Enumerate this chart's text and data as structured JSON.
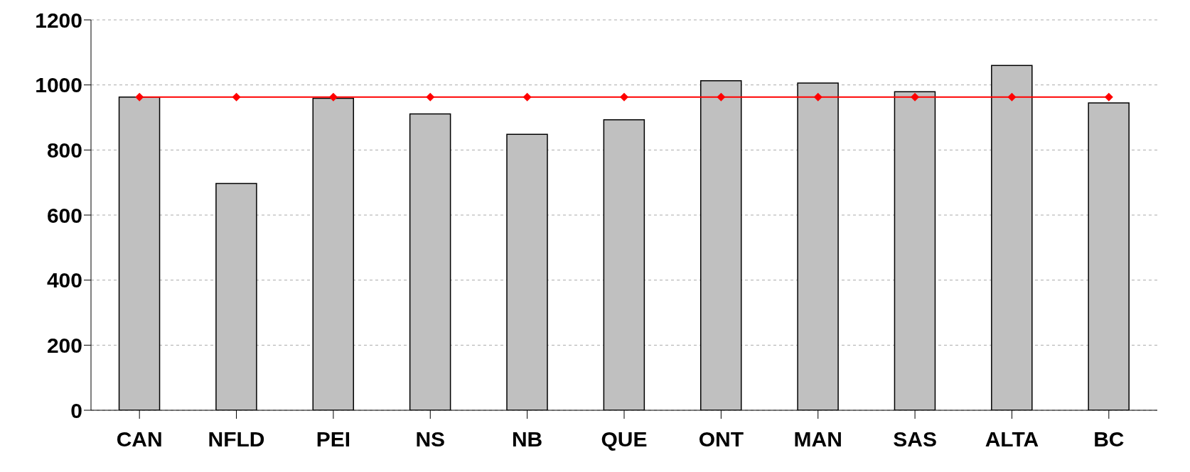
{
  "chart_data": {
    "type": "bar",
    "categories": [
      "CAN",
      "NFLD",
      "PEI",
      "NS",
      "NB",
      "QUE",
      "ONT",
      "MAN",
      "SAS",
      "ALTA",
      "BC"
    ],
    "series": [
      {
        "color": "#c0c0c0",
        "values": [
          963,
          697,
          959,
          911,
          848,
          893,
          1013,
          1006,
          979,
          1060,
          945
        ]
      },
      {
        "type": "line",
        "color": "#ff0000",
        "marker": "diamond",
        "values": [
          963,
          963,
          963,
          963,
          963,
          963,
          963,
          963,
          963,
          963,
          963
        ]
      }
    ],
    "ylim": [
      0,
      1200
    ],
    "yticks": [
      0,
      200,
      400,
      600,
      800,
      1000,
      1200
    ],
    "grid": "y",
    "legend": false
  }
}
